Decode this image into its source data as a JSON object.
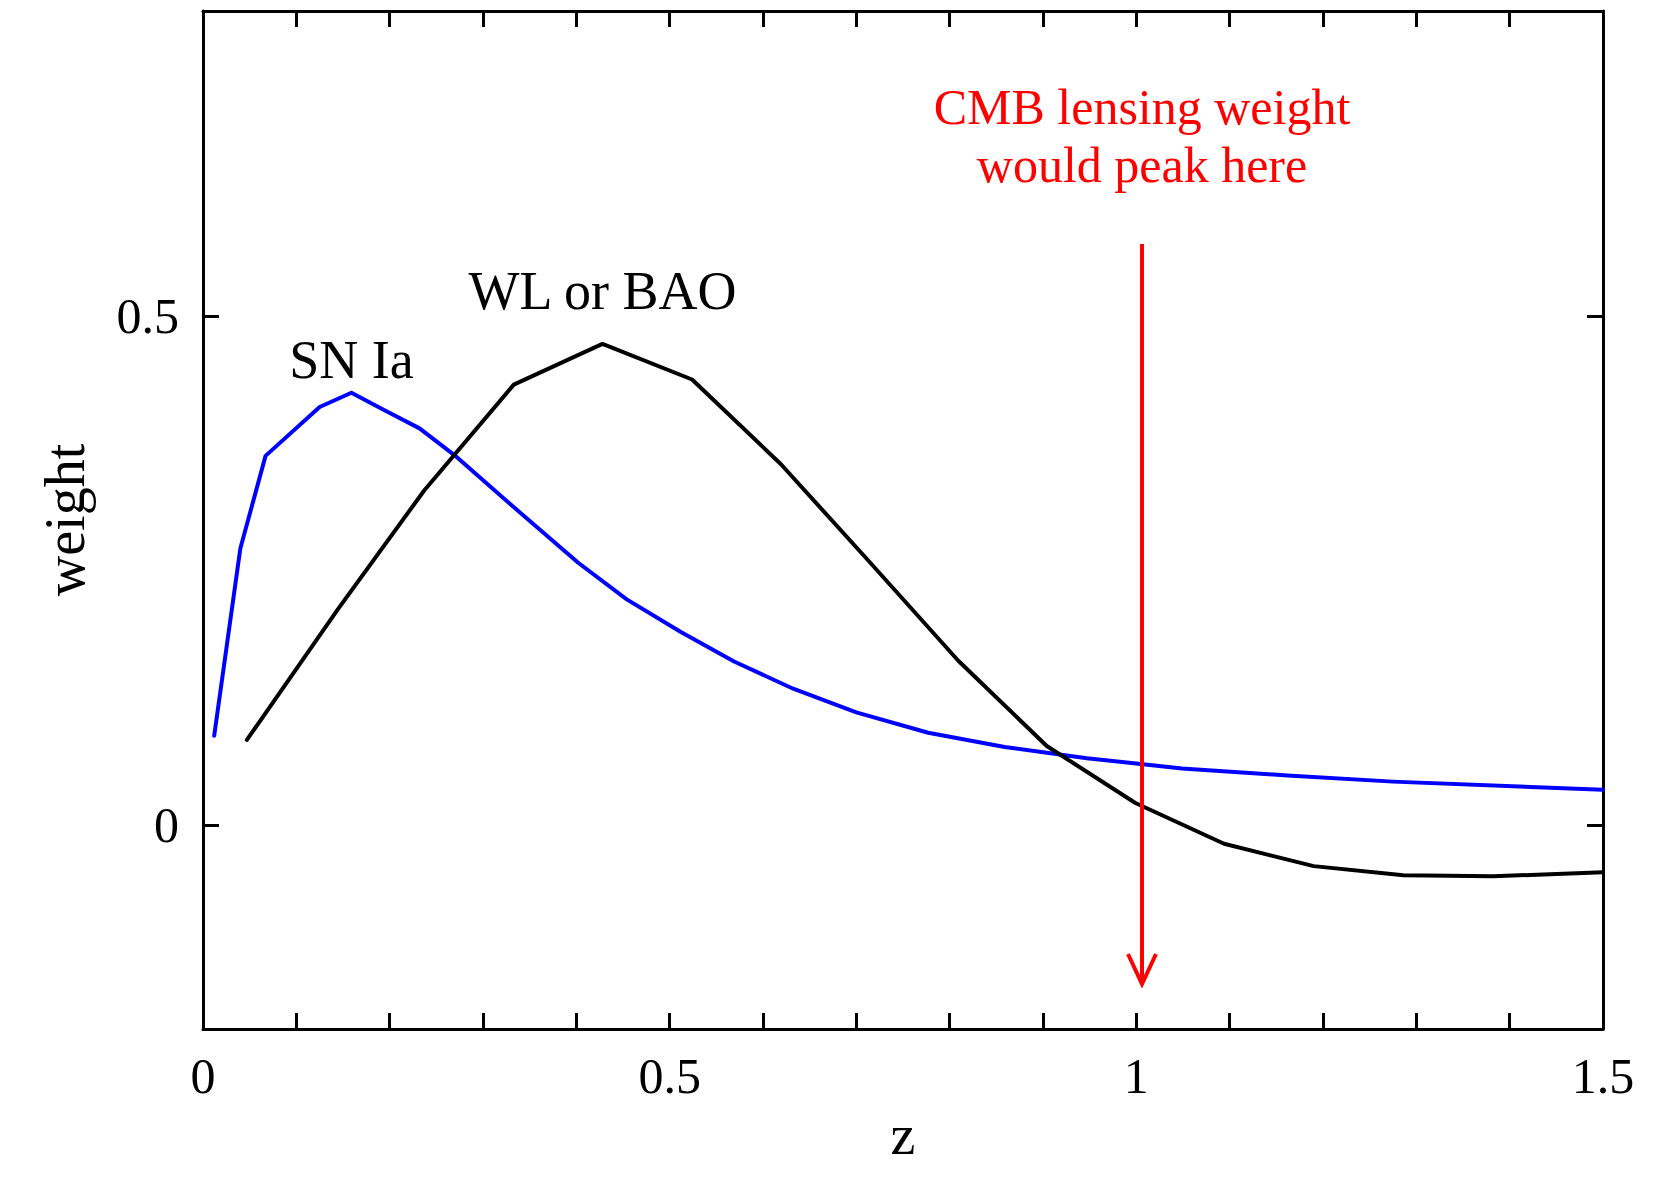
{
  "chart_data": {
    "type": "line",
    "xlabel": "z",
    "ylabel": "weight",
    "xlim": [
      0,
      1.5
    ],
    "ylim": [
      -0.2,
      0.8
    ],
    "xticks": [
      0,
      {
        "value": 0.1,
        "label": null
      },
      {
        "value": 0.2,
        "label": null
      },
      {
        "value": 0.3,
        "label": null
      },
      {
        "value": 0.4,
        "label": null
      },
      0.5,
      {
        "value": 0.6,
        "label": null
      },
      {
        "value": 0.7,
        "label": null
      },
      {
        "value": 0.8,
        "label": null
      },
      {
        "value": 0.9,
        "label": null
      },
      1,
      {
        "value": 1.1,
        "label": null
      },
      {
        "value": 1.2,
        "label": null
      },
      {
        "value": 1.3,
        "label": null
      },
      {
        "value": 1.4,
        "label": null
      },
      1.5
    ],
    "yticks": [
      0,
      0.5
    ],
    "grid": false,
    "legend": false,
    "marker": "none",
    "line_style": "solid",
    "series": [
      {
        "name": "SN Ia",
        "color": "#0000ff",
        "x": [
          0.012,
          0.04,
          0.067,
          0.125,
          0.159,
          0.196,
          0.232,
          0.269,
          0.335,
          0.402,
          0.454,
          0.512,
          0.569,
          0.633,
          0.7,
          0.777,
          0.859,
          0.947,
          1.049,
          1.162,
          1.275,
          1.5
        ],
        "values": [
          0.088,
          0.272,
          0.363,
          0.411,
          0.425,
          0.407,
          0.39,
          0.364,
          0.311,
          0.258,
          0.222,
          0.19,
          0.161,
          0.134,
          0.111,
          0.091,
          0.077,
          0.066,
          0.056,
          0.049,
          0.043,
          0.035
        ]
      },
      {
        "name": "WL or BAO",
        "color": "#000000",
        "x": [
          0.047,
          0.145,
          0.237,
          0.333,
          0.428,
          0.524,
          0.619,
          0.714,
          0.809,
          0.904,
          0.999,
          1.094,
          1.19,
          1.286,
          1.382,
          1.5
        ],
        "values": [
          0.084,
          0.213,
          0.329,
          0.433,
          0.473,
          0.438,
          0.355,
          0.259,
          0.162,
          0.078,
          0.022,
          -0.018,
          -0.04,
          -0.049,
          -0.05,
          -0.046
        ]
      }
    ],
    "annotations": [
      "CMB lensing weight\nwould peak here"
    ]
  }
}
